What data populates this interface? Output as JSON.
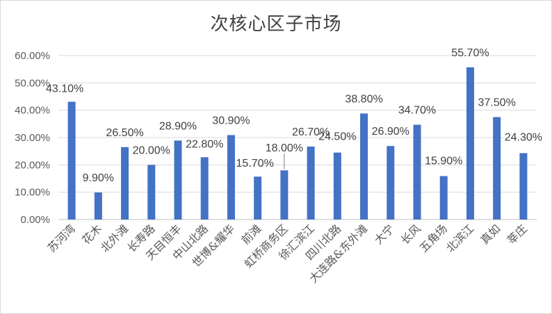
{
  "chart_data": {
    "type": "bar",
    "title": "次核心区子市场",
    "xlabel": "",
    "ylabel": "",
    "ylim": [
      0,
      60
    ],
    "y_ticks": [
      "0.00%",
      "10.00%",
      "20.00%",
      "30.00%",
      "40.00%",
      "50.00%",
      "60.00%"
    ],
    "grid": true,
    "legend": "none",
    "bar_color": "#4472c4",
    "categories": [
      "苏河湾",
      "花木",
      "北外滩",
      "长寿路",
      "天目恒丰",
      "中山北路",
      "世博&耀华",
      "前滩",
      "虹桥商务区",
      "徐汇滨江",
      "四川北路",
      "大连路&东外滩",
      "大宁",
      "长风",
      "五角场",
      "北滨江",
      "真如",
      "莘庄"
    ],
    "values": [
      43.1,
      9.9,
      26.5,
      20.0,
      28.9,
      22.8,
      30.9,
      15.7,
      18.0,
      26.7,
      24.5,
      38.8,
      26.9,
      34.7,
      15.9,
      55.7,
      37.5,
      24.3
    ],
    "data_labels": [
      "43.10%",
      "9.90%",
      "26.50%",
      "20.00%",
      "28.90%",
      "22.80%",
      "30.90%",
      "15.70%",
      "18.00%",
      "26.70%",
      "24.50%",
      "38.80%",
      "26.90%",
      "34.70%",
      "15.90%",
      "55.70%",
      "37.50%",
      "24.30%"
    ]
  }
}
